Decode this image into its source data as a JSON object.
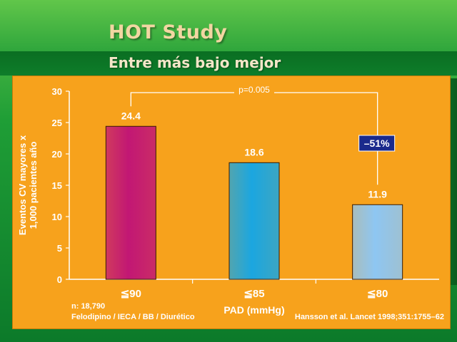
{
  "slide": {
    "title": "HOT Study",
    "subtitle": "Entre más bajo mejor"
  },
  "chart_data": {
    "type": "bar",
    "categories": [
      "≦90",
      "≦85",
      "≦80"
    ],
    "values": [
      24.4,
      18.6,
      11.9
    ],
    "value_labels": [
      "24.4",
      "18.6",
      "11.9"
    ],
    "bar_colors": [
      "#c21774",
      "#1ba6e0",
      "#8ec6f2"
    ],
    "xlabel": "PAD (mmHg)",
    "ylabel_line1": "Eventos CV mayores x",
    "ylabel_line2": "1,000 pacientes año",
    "ylim": [
      0,
      30
    ],
    "yticks": [
      0,
      5,
      10,
      15,
      20,
      25,
      30
    ],
    "grid": false,
    "annotations": {
      "p_value": "p=0.005",
      "reduction": "–51%",
      "n_line": "n: 18,790",
      "drugs_line": "Felodipino / IECA / BB / Diurético",
      "citation": "Hansson et al. Lancet 1998;351:1755–62"
    }
  },
  "colors": {
    "background": "#0f8a2e",
    "panel": "#f7a21c",
    "reduction_box": "#1a2a8c"
  }
}
